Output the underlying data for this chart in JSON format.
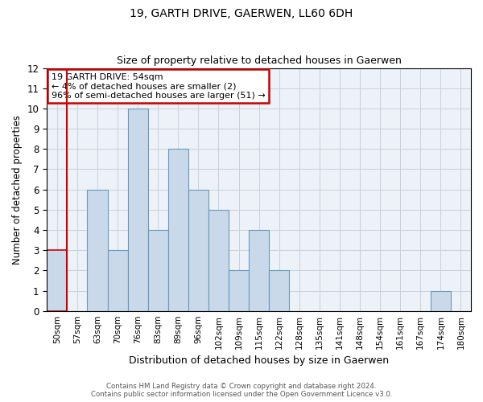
{
  "title": "19, GARTH DRIVE, GAERWEN, LL60 6DH",
  "subtitle": "Size of property relative to detached houses in Gaerwen",
  "xlabel": "Distribution of detached houses by size in Gaerwen",
  "ylabel": "Number of detached properties",
  "bar_labels": [
    "50sqm",
    "57sqm",
    "63sqm",
    "70sqm",
    "76sqm",
    "83sqm",
    "89sqm",
    "96sqm",
    "102sqm",
    "109sqm",
    "115sqm",
    "122sqm",
    "128sqm",
    "135sqm",
    "141sqm",
    "148sqm",
    "154sqm",
    "161sqm",
    "167sqm",
    "174sqm",
    "180sqm"
  ],
  "bar_values": [
    3,
    0,
    6,
    3,
    10,
    4,
    8,
    6,
    5,
    2,
    4,
    2,
    0,
    0,
    0,
    0,
    0,
    0,
    0,
    1,
    0
  ],
  "bar_color": "#c9d9ea",
  "bar_edge_color": "#6699bb",
  "highlight_bar_edge_color": "#cc0000",
  "vline_color": "#cc0000",
  "vline_position": 0.5,
  "ylim": [
    0,
    12
  ],
  "yticks": [
    0,
    1,
    2,
    3,
    4,
    5,
    6,
    7,
    8,
    9,
    10,
    11,
    12
  ],
  "grid_color": "#c8d0dc",
  "bg_color": "#edf2f8",
  "annotation_text": "19 GARTH DRIVE: 54sqm\n← 4% of detached houses are smaller (2)\n96% of semi-detached houses are larger (51) →",
  "annotation_box_color": "white",
  "annotation_box_edge_color": "#cc0000",
  "footer_line1": "Contains HM Land Registry data © Crown copyright and database right 2024.",
  "footer_line2": "Contains public sector information licensed under the Open Government Licence v3.0."
}
